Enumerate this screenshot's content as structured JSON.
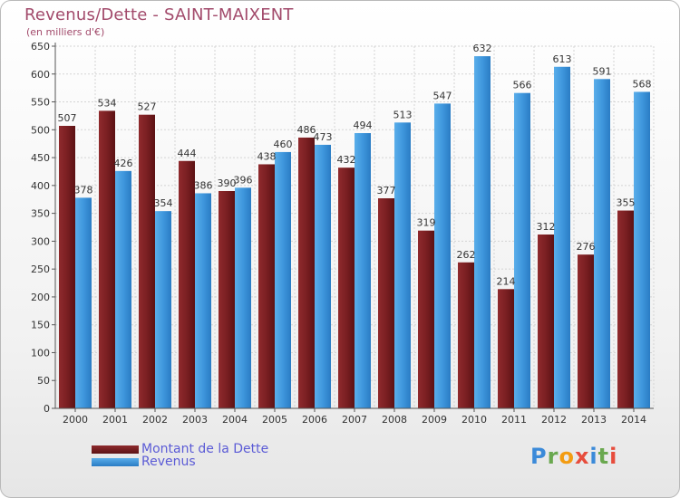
{
  "chart_data": {
    "type": "bar",
    "title": "Revenus/Dette - SAINT-MAIXENT",
    "subtitle": "(en milliers d'€)",
    "categories": [
      "2000",
      "2001",
      "2002",
      "2003",
      "2004",
      "2005",
      "2006",
      "2007",
      "2008",
      "2009",
      "2010",
      "2011",
      "2012",
      "2013",
      "2014"
    ],
    "series": [
      {
        "name": "Montant de la Dette",
        "color": "#7a1f22",
        "values": [
          507,
          534,
          527,
          444,
          390,
          438,
          486,
          432,
          377,
          319,
          262,
          214,
          312,
          276,
          355
        ]
      },
      {
        "name": "Revenus",
        "color": "#3f97dd",
        "values": [
          378,
          426,
          354,
          386,
          396,
          460,
          473,
          494,
          513,
          547,
          632,
          566,
          613,
          591,
          568
        ]
      }
    ],
    "ylim": [
      0,
      650
    ],
    "yticks": [
      0,
      50,
      100,
      150,
      200,
      250,
      300,
      350,
      400,
      450,
      500,
      550,
      600,
      650
    ],
    "grid": true,
    "legend_position": "bottom-left"
  },
  "logo": {
    "text": "Proxiti"
  }
}
